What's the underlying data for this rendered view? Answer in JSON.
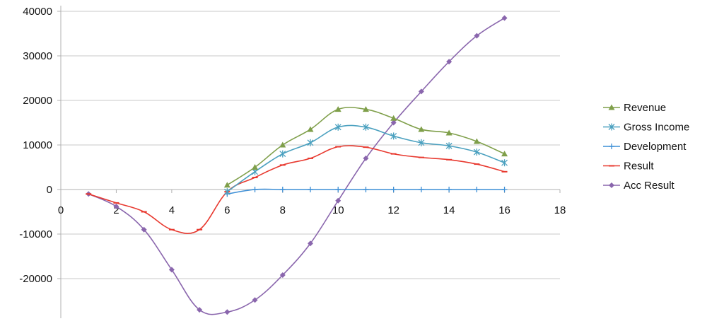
{
  "chart_data": {
    "type": "line",
    "xlim": [
      0,
      18
    ],
    "ylim": [
      -27500,
      40000
    ],
    "x_ticks": [
      0,
      2,
      4,
      6,
      8,
      10,
      12,
      14,
      16,
      18
    ],
    "y_ticks": [
      40000,
      30000,
      20000,
      10000,
      0,
      -10000,
      -20000
    ],
    "grid": "horizontal",
    "legend_position": "right",
    "series": [
      {
        "name": "Revenue",
        "color": "#7f9f4a",
        "marker": "triangle",
        "x": [
          6,
          7,
          8,
          9,
          10,
          11,
          12,
          13,
          14,
          15,
          16
        ],
        "y": [
          1000,
          5000,
          10000,
          13500,
          18000,
          18000,
          16000,
          13500,
          12700,
          10800,
          8000
        ]
      },
      {
        "name": "Gross Income",
        "color": "#4aa0bf",
        "marker": "asterisk",
        "x": [
          6,
          7,
          8,
          9,
          10,
          11,
          12,
          13,
          14,
          15,
          16
        ],
        "y": [
          -500,
          4000,
          8000,
          10500,
          14000,
          14000,
          12000,
          10500,
          9800,
          8400,
          6000
        ]
      },
      {
        "name": "Development",
        "color": "#3d8fd6",
        "marker": "plus",
        "x": [
          6,
          7,
          8,
          9,
          10,
          11,
          12,
          13,
          14,
          15,
          16
        ],
        "y": [
          -1000,
          0,
          0,
          0,
          0,
          0,
          0,
          0,
          0,
          0,
          0
        ]
      },
      {
        "name": "Result",
        "color": "#e8392f",
        "marker": "dash",
        "x": [
          1,
          2,
          3,
          4,
          5,
          6,
          7,
          8,
          9,
          10,
          11,
          12,
          13,
          14,
          15,
          16
        ],
        "y": [
          -1000,
          -3000,
          -5000,
          -9000,
          -9000,
          -500,
          2700,
          5500,
          7000,
          9600,
          9500,
          8000,
          7200,
          6700,
          5700,
          4000
        ]
      },
      {
        "name": "Acc Result",
        "color": "#8a66ad",
        "marker": "diamond",
        "x": [
          1,
          2,
          3,
          4,
          5,
          6,
          7,
          8,
          9,
          10,
          11,
          12,
          13,
          14,
          15,
          16
        ],
        "y": [
          -1000,
          -3800,
          -9000,
          -18000,
          -27000,
          -27500,
          -24800,
          -19200,
          -12100,
          -2500,
          7000,
          15000,
          22000,
          28700,
          34500,
          38500
        ]
      }
    ]
  }
}
